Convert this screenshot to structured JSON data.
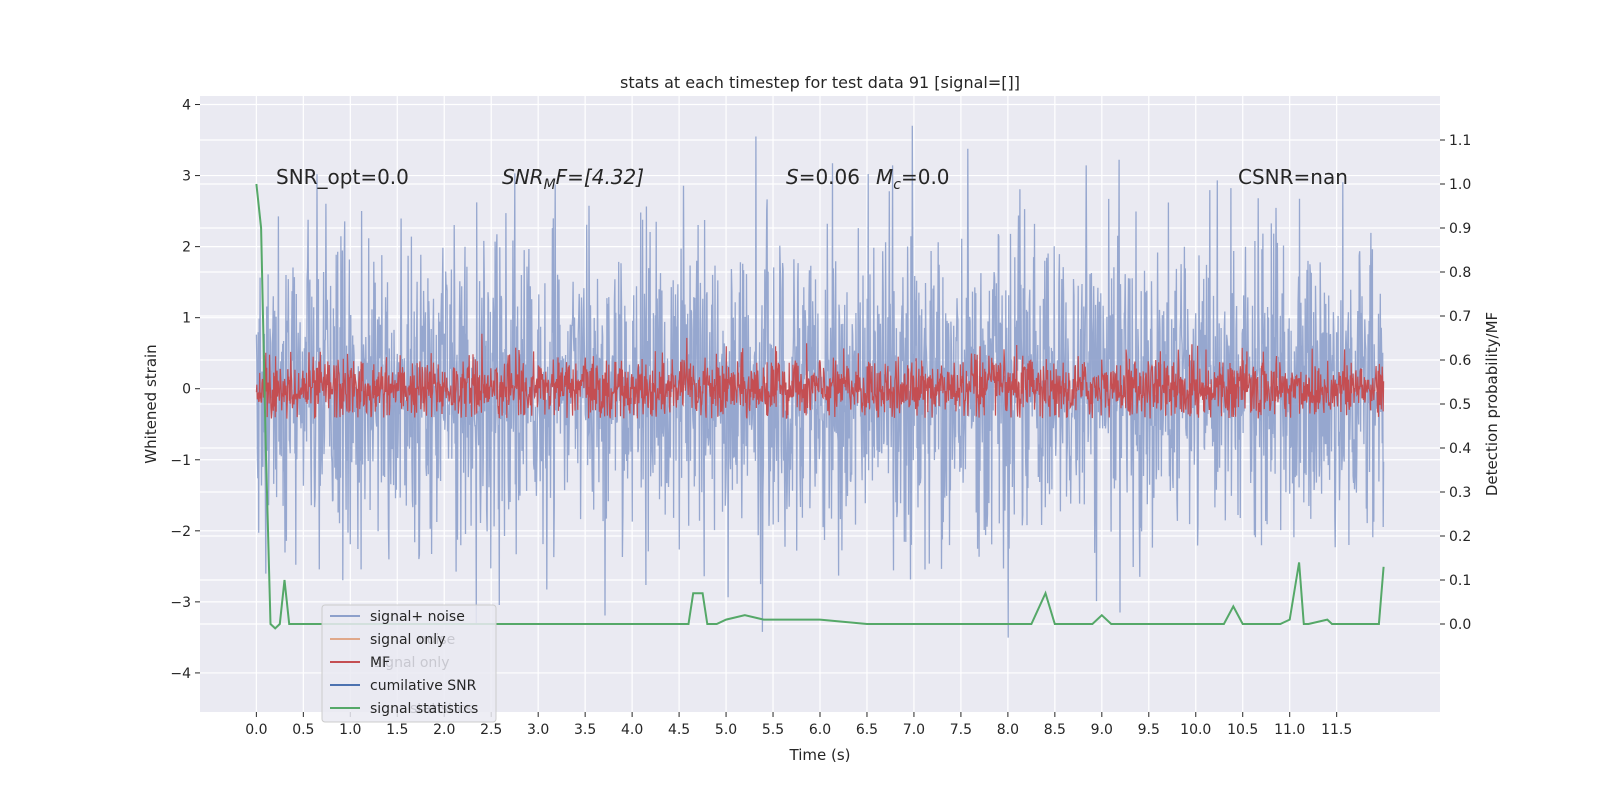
{
  "chart_data": {
    "type": "line",
    "title": "stats at each timestep for test data 91 [signal=[]]",
    "xlabel": "Time (s)",
    "ylabel_left": "Whitened strain",
    "ylabel_right": "Detection probability/MF",
    "xlim": [
      -0.6,
      12.6
    ],
    "ylim_left": [
      -4.55,
      4.12
    ],
    "ylim_right": [
      -0.2,
      1.2
    ],
    "grid": true,
    "xticks": [
      0.0,
      0.5,
      1.0,
      1.5,
      2.0,
      2.5,
      3.0,
      3.5,
      4.0,
      4.5,
      5.0,
      5.5,
      6.0,
      6.5,
      7.0,
      7.5,
      8.0,
      8.5,
      9.0,
      9.5,
      10.0,
      10.5,
      11.0,
      11.5
    ],
    "xtick_labels": [
      "0.0",
      "0.5",
      "1.0",
      "1.5",
      "2.0",
      "2.5",
      "3.0",
      "3.5",
      "4.0",
      "4.5",
      "5.0",
      "5.5",
      "6.0",
      "6.5",
      "7.0",
      "7.5",
      "8.0",
      "8.5",
      "9.0",
      "9.5",
      "10.0",
      "10.5",
      "11.0",
      "11.5"
    ],
    "yticks_left": [
      -4,
      -3,
      -2,
      -1,
      0,
      1,
      2,
      3,
      4
    ],
    "ytick_labels_left": [
      "−4",
      "−3",
      "−2",
      "−1",
      "0",
      "1",
      "2",
      "3",
      "4"
    ],
    "yticks_right": [
      0.0,
      0.1,
      0.2,
      0.3,
      0.4,
      0.5,
      0.6,
      0.7,
      0.8,
      0.9,
      1.0,
      1.1
    ],
    "ytick_labels_right": [
      "0.0",
      "0.1",
      "0.2",
      "0.3",
      "0.4",
      "0.5",
      "0.6",
      "0.7",
      "0.8",
      "0.9",
      "1.0",
      "1.1"
    ],
    "annotations": [
      {
        "text": "SNR_opt=0.0",
        "x": 0.2,
        "y": 3.0
      },
      {
        "text": "SNR_MF=[4.32]",
        "x": 2.6,
        "y": 3.0
      },
      {
        "text": "S=0.06   M_c=0.0",
        "x": 5.6,
        "y": 3.0
      },
      {
        "text": "CSNR=nan",
        "x": 10.4,
        "y": 3.0
      }
    ],
    "annotation_display": {
      "snr_opt": "SNR_opt=0.0",
      "snr_mf_sym": "SNR",
      "snr_mf_sub": "M",
      "snr_mf_rest": "F=[4.32]",
      "s_sym": "S",
      "s_rest": "=0.06",
      "mc_sym": "M",
      "mc_sub": "c",
      "mc_rest": "=0.0",
      "csnr": "CSNR=nan"
    },
    "legend": {
      "placement": "lower-left",
      "entries": [
        {
          "label": "signal+ noise",
          "color": "#8da0cb"
        },
        {
          "label": "signal only",
          "color": "#e0a88a"
        },
        {
          "label": "MF",
          "color": "#c44e52"
        },
        {
          "label": "cumilative SNR",
          "color": "#4c72b0"
        },
        {
          "label": "signal statistics",
          "color": "#55a868"
        }
      ],
      "ghost_entries": [
        "noise",
        "signal only",
        "statistics"
      ]
    },
    "series": [
      {
        "name": "signal+ noise",
        "axis": "left",
        "color": "#8da0cb",
        "description": "noisy whitened strain, approx. range -4.1 to 3.7, x from 0 to 12"
      },
      {
        "name": "MF",
        "axis": "left",
        "color": "#c44e52",
        "description": "matched-filter output, approx. range -0.4 to 1.0"
      },
      {
        "name": "signal statistics",
        "axis": "right",
        "color": "#55a868",
        "x": [
          0.0,
          0.05,
          0.1,
          0.15,
          0.2,
          0.25,
          0.3,
          0.35,
          0.4,
          0.5,
          1.0,
          2.0,
          3.0,
          4.0,
          4.5,
          4.6,
          4.65,
          4.75,
          4.8,
          4.9,
          5.0,
          5.2,
          5.4,
          6.0,
          6.5,
          7.0,
          7.4,
          7.5,
          8.0,
          8.25,
          8.4,
          8.5,
          8.9,
          9.0,
          9.1,
          9.2,
          9.4,
          9.6,
          10.0,
          10.3,
          10.4,
          10.5,
          10.6,
          10.9,
          11.0,
          11.1,
          11.15,
          11.2,
          11.4,
          11.45,
          11.6,
          11.95,
          12.0
        ],
        "y": [
          1.0,
          0.9,
          0.4,
          0.0,
          -0.01,
          0.0,
          0.1,
          0.0,
          0.0,
          0.0,
          0.0,
          0.0,
          0.0,
          0.0,
          0.0,
          0.0,
          0.07,
          0.07,
          0.0,
          0.0,
          0.01,
          0.02,
          0.01,
          0.01,
          0.0,
          0.0,
          0.0,
          0.0,
          0.0,
          0.0,
          0.07,
          0.0,
          0.0,
          0.02,
          0.0,
          0.0,
          0.0,
          0.0,
          0.0,
          0.0,
          0.04,
          0.0,
          0.0,
          0.0,
          0.01,
          0.14,
          0.0,
          0.0,
          0.01,
          0.0,
          0.0,
          0.0,
          0.13
        ]
      }
    ]
  }
}
